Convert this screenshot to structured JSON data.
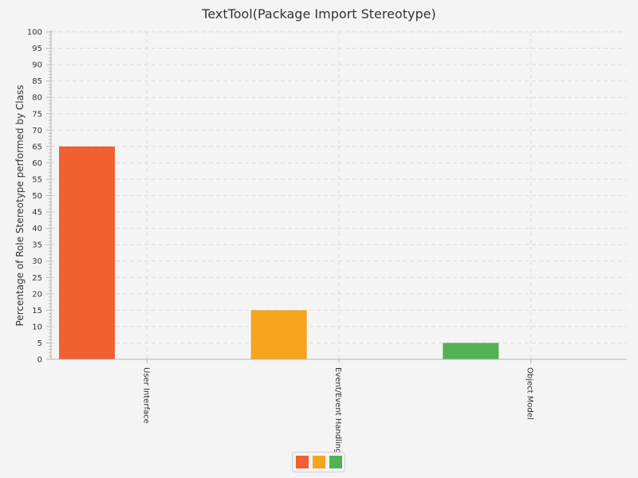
{
  "chart_data": {
    "type": "bar",
    "title": "TextTool(Package Import Stereotype)",
    "xlabel": "",
    "ylabel": "Percentage of Role Stereotype performed by Class",
    "categories": [
      "User Interface",
      "Event/Event Handling",
      "Object Model"
    ],
    "values": [
      65,
      15,
      5
    ],
    "bar_colors": [
      "#f06030",
      "#f6a41e",
      "#52b153"
    ],
    "ylim": [
      0,
      100
    ],
    "yticks": [
      "0",
      "5",
      "10",
      "15",
      "20",
      "25",
      "30",
      "35",
      "40",
      "45",
      "50",
      "55",
      "60",
      "65",
      "70",
      "75",
      "80",
      "85",
      "90",
      "95",
      "100"
    ],
    "grid": true,
    "legend": {
      "placement": "bottom-center",
      "entries": [
        "",
        "",
        ""
      ],
      "colors": [
        "#f06030",
        "#f6a41e",
        "#52b153"
      ]
    }
  }
}
